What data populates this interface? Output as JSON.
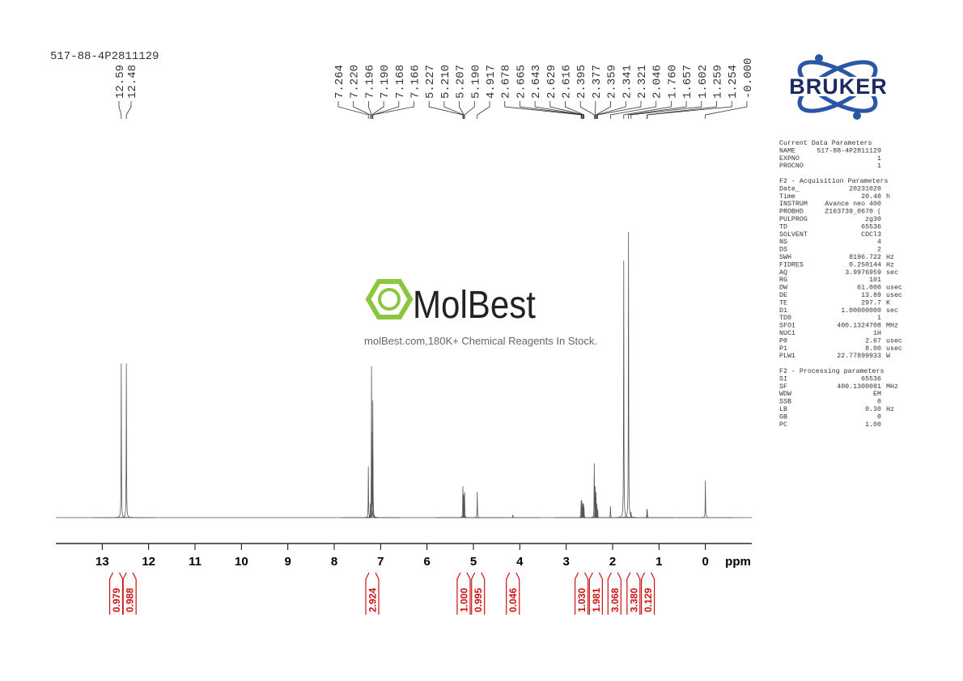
{
  "chart_data": {
    "type": "nmr",
    "title": "517-88-4P2811129",
    "xlabel": "ppm",
    "xlim": [
      14.0,
      -1.0
    ],
    "xticks": [
      13,
      12,
      11,
      10,
      9,
      8,
      7,
      6,
      5,
      4,
      3,
      2,
      1,
      0
    ],
    "ylim": [
      0,
      100
    ],
    "color": "#555555",
    "peak_labels": {
      "values": [
        12.59,
        12.48,
        7.264,
        7.22,
        7.196,
        7.19,
        7.168,
        7.166,
        5.227,
        5.21,
        5.207,
        5.19,
        4.917,
        2.678,
        2.665,
        2.643,
        2.629,
        2.616,
        2.395,
        2.377,
        2.359,
        2.341,
        2.321,
        2.046,
        1.76,
        1.657,
        1.602,
        1.259,
        1.254,
        0
      ],
      "value_labels": [
        "12.59",
        "12.48",
        "7.264",
        "7.220",
        "7.196",
        "7.190",
        "7.168",
        "7.166",
        "5.227",
        "5.210",
        "5.207",
        "5.190",
        "4.917",
        "2.678",
        "2.665",
        "2.643",
        "2.629",
        "2.616",
        "2.395",
        "2.377",
        "2.359",
        "2.341",
        "2.321",
        "2.046",
        "1.760",
        "1.657",
        "1.602",
        "1.259",
        "1.254",
        "-0.000"
      ]
    },
    "spectrum": {
      "x": [
        12.59,
        12.48,
        7.264,
        7.22,
        7.196,
        7.19,
        7.168,
        7.166,
        5.227,
        5.21,
        5.207,
        5.19,
        4.917,
        4.15,
        2.678,
        2.665,
        2.643,
        2.629,
        2.616,
        2.395,
        2.377,
        2.359,
        2.341,
        2.321,
        2.046,
        1.76,
        1.657,
        1.602,
        1.259,
        1.254,
        0
      ],
      "heights": [
        54,
        54,
        18,
        5,
        53,
        30,
        41,
        20,
        11,
        8,
        8,
        9,
        9,
        1,
        6,
        6,
        5,
        5,
        4,
        19,
        11,
        9,
        5,
        3,
        4,
        90,
        100,
        2,
        3,
        3,
        13
      ]
    },
    "integrals": {
      "color": "#cc1111",
      "x": [
        12.7,
        12.41,
        7.18,
        5.21,
        4.9,
        4.15,
        2.67,
        2.36,
        1.96,
        1.55,
        1.24
      ],
      "values": [
        0.979,
        0.988,
        2.924,
        1,
        0.995,
        0.046,
        1.03,
        1.981,
        3.068,
        3.38,
        0.129
      ],
      "value_labels": [
        "0.979",
        "0.988",
        "2.924",
        "1.000",
        "0.995",
        "0.046",
        "1.030",
        "1.981",
        "3.068",
        "3.380",
        "0.129"
      ]
    }
  },
  "logo": {
    "text": "BRUKER"
  },
  "watermark": {
    "brand": "MolBest",
    "tagline": "molBest.com,180K+ Chemical Reagents In Stock."
  },
  "parameters": [
    {
      "heading": "Current Data Parameters",
      "rows": [
        [
          "NAME",
          "517-88-4P2811129"
        ],
        [
          "EXPNO",
          "1"
        ],
        [
          "PROCNO",
          "1"
        ]
      ]
    },
    {
      "heading": "F2 - Acquisition Parameters",
      "rows": [
        [
          "Date_",
          "20231020"
        ],
        [
          "Time",
          "20.48",
          "h"
        ],
        [
          "INSTRUM",
          "Avance neo 400"
        ],
        [
          "PROBHD",
          "Z163739_0670 ("
        ],
        [
          "PULPROG",
          "zg30"
        ],
        [
          "TD",
          "65536"
        ],
        [
          "SOLVENT",
          "CDCl3"
        ],
        [
          "NS",
          "4"
        ],
        [
          "DS",
          "2"
        ],
        [
          "SWH",
          "8196.722",
          "Hz"
        ],
        [
          "FIDRES",
          "0.250144",
          "Hz"
        ],
        [
          "AQ",
          "3.9976959",
          "sec"
        ],
        [
          "RG",
          "101"
        ],
        [
          "DW",
          "61.000",
          "usec"
        ],
        [
          "DE",
          "13.89",
          "usec"
        ],
        [
          "TE",
          "297.7",
          "K"
        ],
        [
          "D1",
          "1.00000000",
          "sec"
        ],
        [
          "TD0",
          "1"
        ],
        [
          "SFO1",
          "400.1324708",
          "MHz"
        ],
        [
          "NUC1",
          "1H"
        ],
        [
          "P0",
          "2.67",
          "usec"
        ],
        [
          "P1",
          "8.00",
          "usec"
        ],
        [
          "PLW1",
          "22.77899933",
          "W"
        ]
      ]
    },
    {
      "heading": "F2 - Processing parameters",
      "rows": [
        [
          "SI",
          "65536"
        ],
        [
          "SF",
          "400.1300081",
          "MHz"
        ],
        [
          "WDW",
          "EM"
        ],
        [
          "SSB",
          "0"
        ],
        [
          "LB",
          "0.30",
          "Hz"
        ],
        [
          "GB",
          "0"
        ],
        [
          "PC",
          "1.00"
        ]
      ]
    }
  ]
}
